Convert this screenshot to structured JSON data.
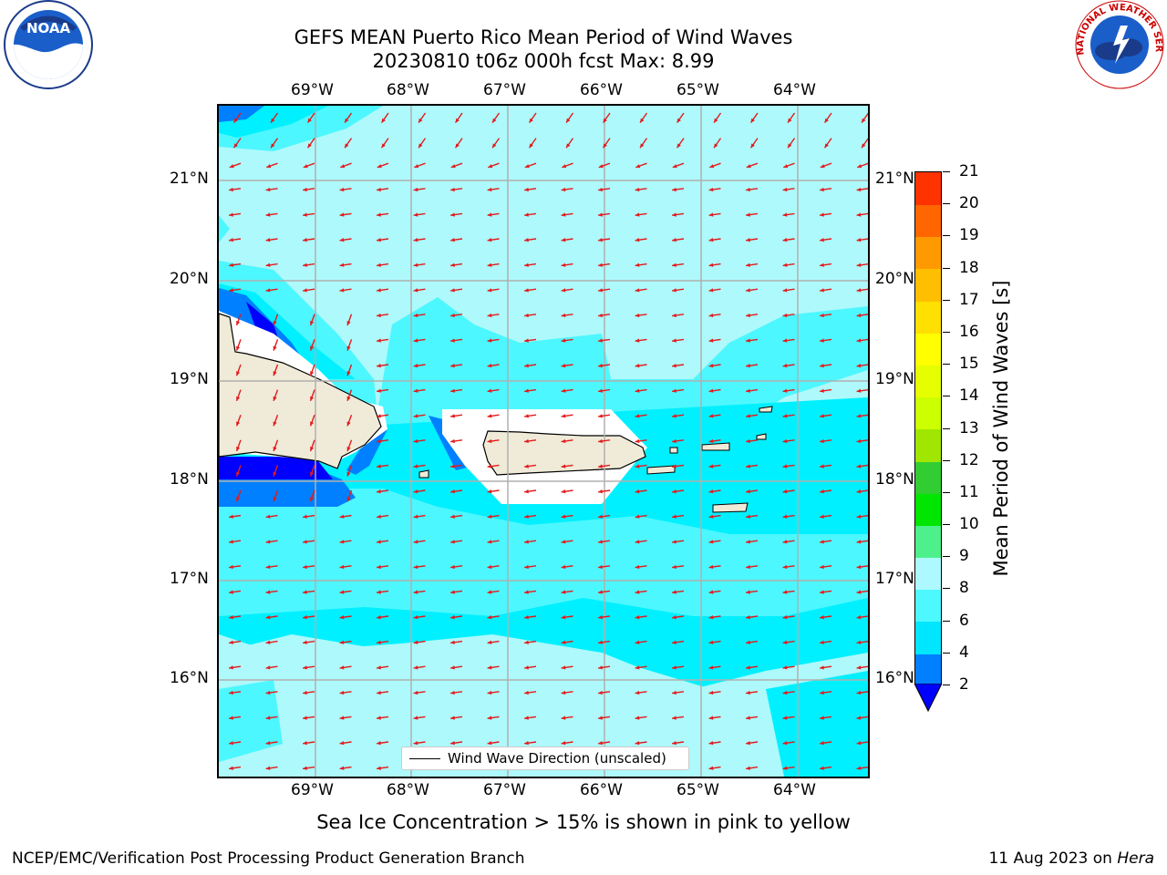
{
  "title": {
    "line1": "GEFS MEAN Puerto Rico Mean Period of Wind Waves",
    "line2": "20230810 t06z 000h fcst   Max: 8.99"
  },
  "map": {
    "lon_labels": [
      "69°W",
      "68°W",
      "67°W",
      "66°W",
      "65°W",
      "64°W"
    ],
    "lat_labels": [
      "21°N",
      "20°N",
      "19°N",
      "18°N",
      "17°N",
      "16°N"
    ],
    "legend_label": "Wind Wave Direction (unscaled)",
    "arrow_color": "#e31a1c",
    "coast_color": "#000000",
    "land_color": "#efebd8",
    "field_colors": {
      "under_2": "#0000ff",
      "2_4": "#0080ff",
      "4_6": "#00f0ff",
      "6_8": "#4df7ff",
      "8_9": "#aef9fb"
    }
  },
  "colorbar": {
    "title": "Mean Period of Wind Waves [s]",
    "ticks": [
      "2",
      "4",
      "6",
      "8",
      "9",
      "10",
      "11",
      "12",
      "13",
      "14",
      "15",
      "16",
      "17",
      "18",
      "19",
      "20",
      "21"
    ],
    "segment_colors": [
      "#007fff",
      "#00e6ff",
      "#4df9ff",
      "#aef9ff",
      "#4df08a",
      "#00e600",
      "#32cd32",
      "#a0e600",
      "#ccff00",
      "#e6ff00",
      "#ffff00",
      "#ffe000",
      "#ffbf00",
      "#ff9900",
      "#ff6600",
      "#ff3300",
      "#ff0000"
    ],
    "under_color": "#0000ff"
  },
  "bottom_note": "Sea Ice Concentration > 15% is shown in pink to yellow",
  "footer": {
    "left": "NCEP/EMC/Verification Post Processing Product Generation Branch",
    "right_prefix": "11 Aug 2023 on ",
    "right_host": "Hera"
  },
  "logos": {
    "noaa_text": "NOAA",
    "nws_text": "NATIONAL WEATHER SERVICE"
  }
}
